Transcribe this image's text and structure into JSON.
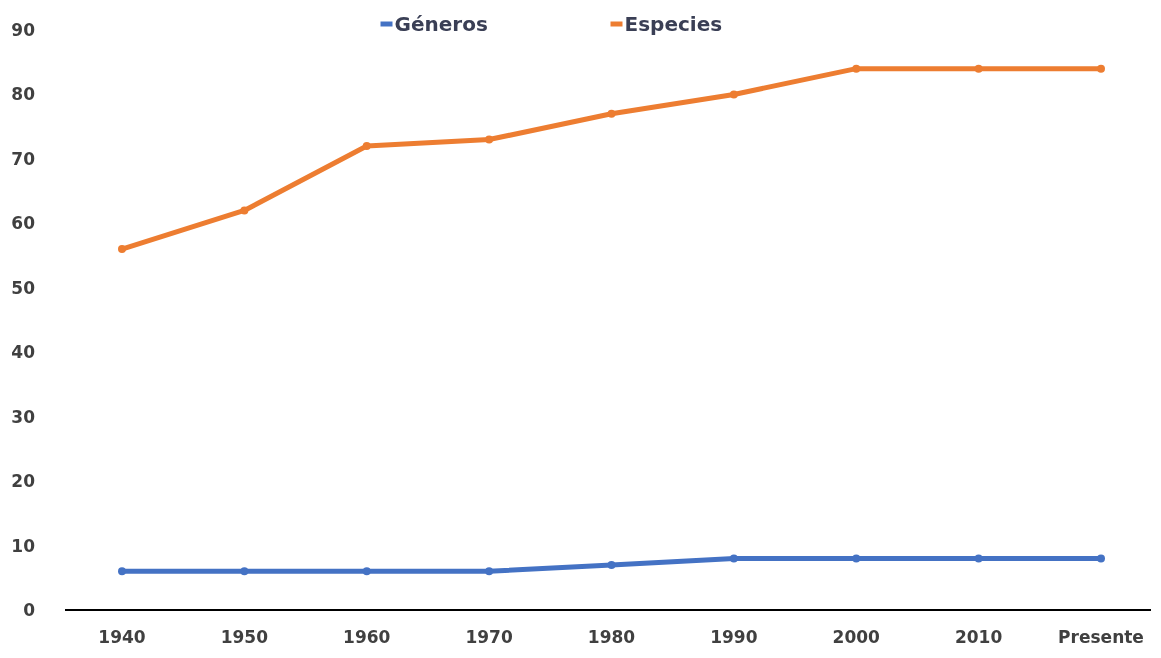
{
  "chart_data": {
    "type": "line",
    "categories": [
      "1940",
      "1950",
      "1960",
      "1970",
      "1980",
      "1990",
      "2000",
      "2010",
      "Presente"
    ],
    "series": [
      {
        "name": "Géneros",
        "color": "#4472c4",
        "values": [
          6,
          6,
          6,
          6,
          7,
          8,
          8,
          8,
          8
        ]
      },
      {
        "name": "Especies",
        "color": "#ed7d31",
        "values": [
          56,
          62,
          72,
          73,
          77,
          80,
          84,
          84,
          84
        ]
      }
    ],
    "ylim": [
      0,
      90
    ],
    "yticks": [
      0,
      10,
      20,
      30,
      40,
      50,
      60,
      70,
      80,
      90
    ],
    "grid": false,
    "legend": "top",
    "marker": "circle",
    "line_style": "solid"
  }
}
